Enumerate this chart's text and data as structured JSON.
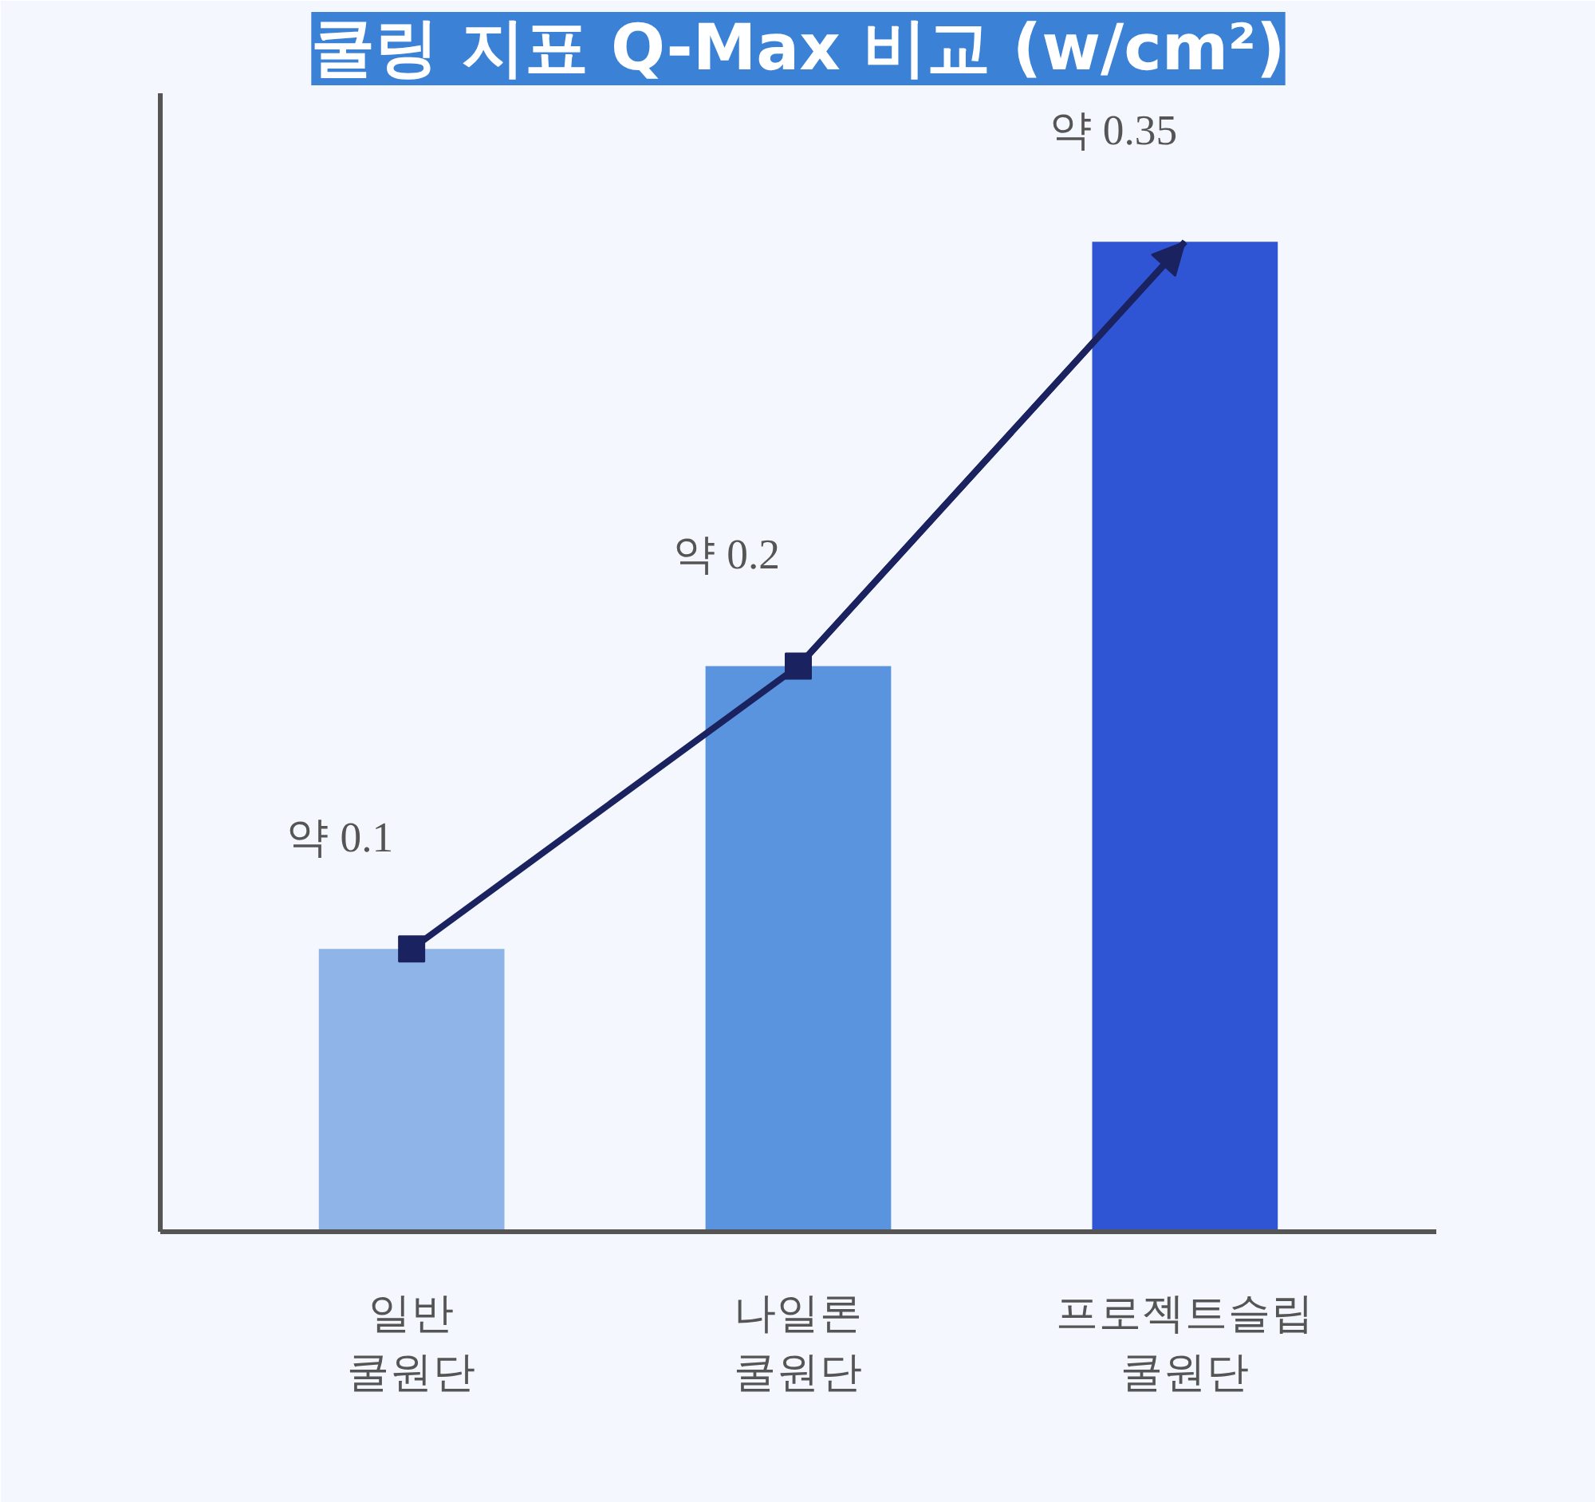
{
  "chart_data": {
    "type": "bar",
    "title": "쿨링 지표 Q-Max 비교 (w/cm²)",
    "categories": [
      "일반\n쿨원단",
      "나일론\n쿨원단",
      "프로젝트슬립\n쿨원단"
    ],
    "series": [
      {
        "colors": [
          "#8fb4e8",
          "#5b94de",
          "#2f55d4"
        ],
        "values": [
          0.1,
          0.2,
          0.35
        ],
        "value_labels": [
          "약 0.1",
          "약 0.2",
          "약 0.35"
        ]
      },
      {
        "type": "line",
        "color": "#1a2260",
        "values": [
          0.1,
          0.2,
          0.35
        ],
        "marker": "square"
      }
    ],
    "relative": false,
    "grid": false
  }
}
